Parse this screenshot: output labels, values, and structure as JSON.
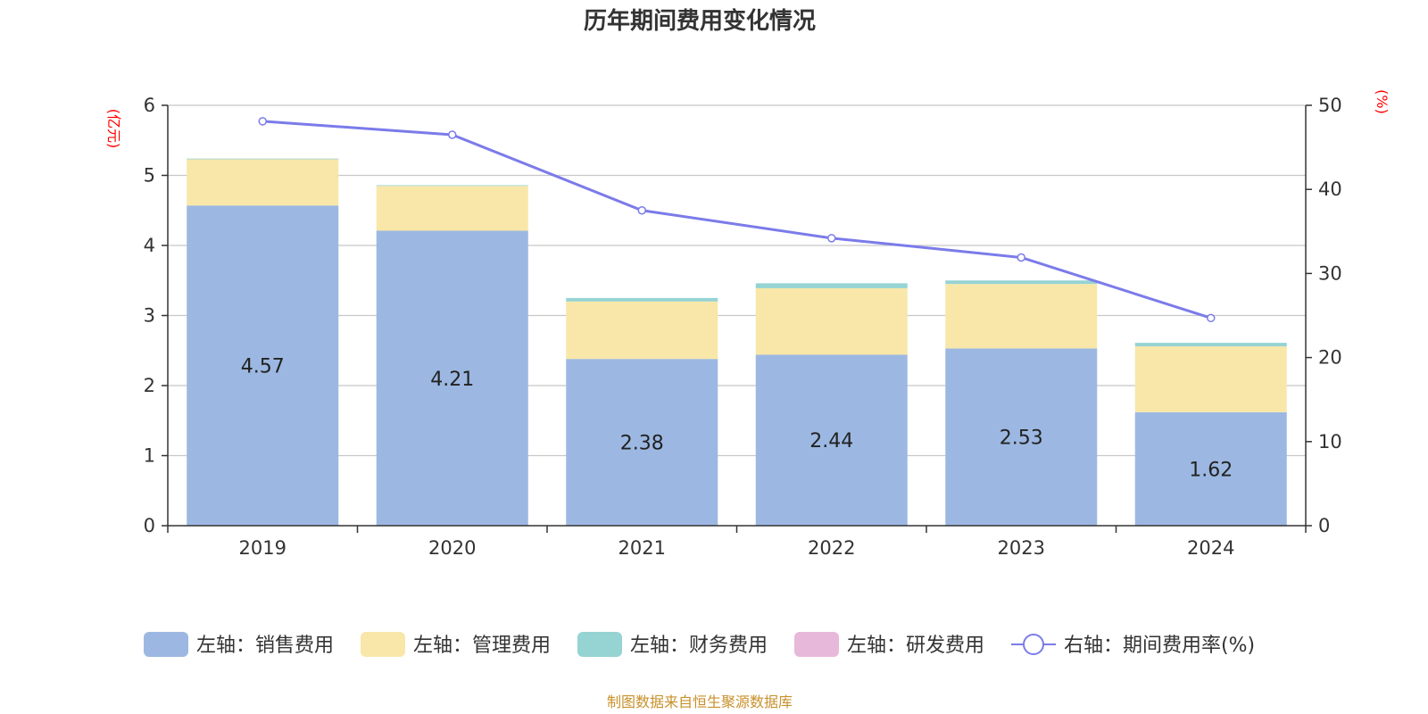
{
  "chart_data": {
    "type": "bar",
    "title": "历年期间费用变化情况",
    "categories": [
      "2019",
      "2020",
      "2021",
      "2022",
      "2023",
      "2024"
    ],
    "left_axis": {
      "unit": "(亿元)",
      "ylim": [
        0,
        6
      ],
      "ticks": [
        "0",
        "1",
        "2",
        "3",
        "4",
        "5",
        "6"
      ]
    },
    "right_axis": {
      "unit": "(%)",
      "ylim": [
        0,
        50
      ],
      "ticks": [
        "0",
        "10",
        "20",
        "30",
        "40",
        "50"
      ]
    },
    "series": [
      {
        "name": "左轴：销售费用",
        "type": "bar",
        "axis": "left",
        "color": "#9cb8e2",
        "values": [
          4.57,
          4.21,
          2.38,
          2.44,
          2.53,
          1.62
        ],
        "labels": [
          "4.57",
          "4.21",
          "2.38",
          "2.44",
          "2.53",
          "1.62"
        ]
      },
      {
        "name": "左轴：管理费用",
        "type": "bar",
        "axis": "left",
        "color": "#f8e7a9",
        "values": [
          0.66,
          0.64,
          0.82,
          0.95,
          0.92,
          0.94
        ]
      },
      {
        "name": "左轴：财务费用",
        "type": "bar",
        "axis": "left",
        "color": "#96d3d3",
        "values": [
          0.01,
          0.01,
          0.05,
          0.07,
          0.05,
          0.05
        ]
      },
      {
        "name": "左轴：研发费用",
        "type": "bar",
        "axis": "left",
        "color": "#e8b8da",
        "values": [
          0,
          0,
          0,
          0,
          0,
          0
        ]
      },
      {
        "name": "右轴：期间费用率(%)",
        "type": "line",
        "axis": "right",
        "color": "#7b7bea",
        "values": [
          48.1,
          46.5,
          37.5,
          34.2,
          31.9,
          24.7
        ]
      }
    ],
    "grid": true,
    "legend_position": "bottom"
  },
  "source_note": "制图数据来自恒生聚源数据库"
}
